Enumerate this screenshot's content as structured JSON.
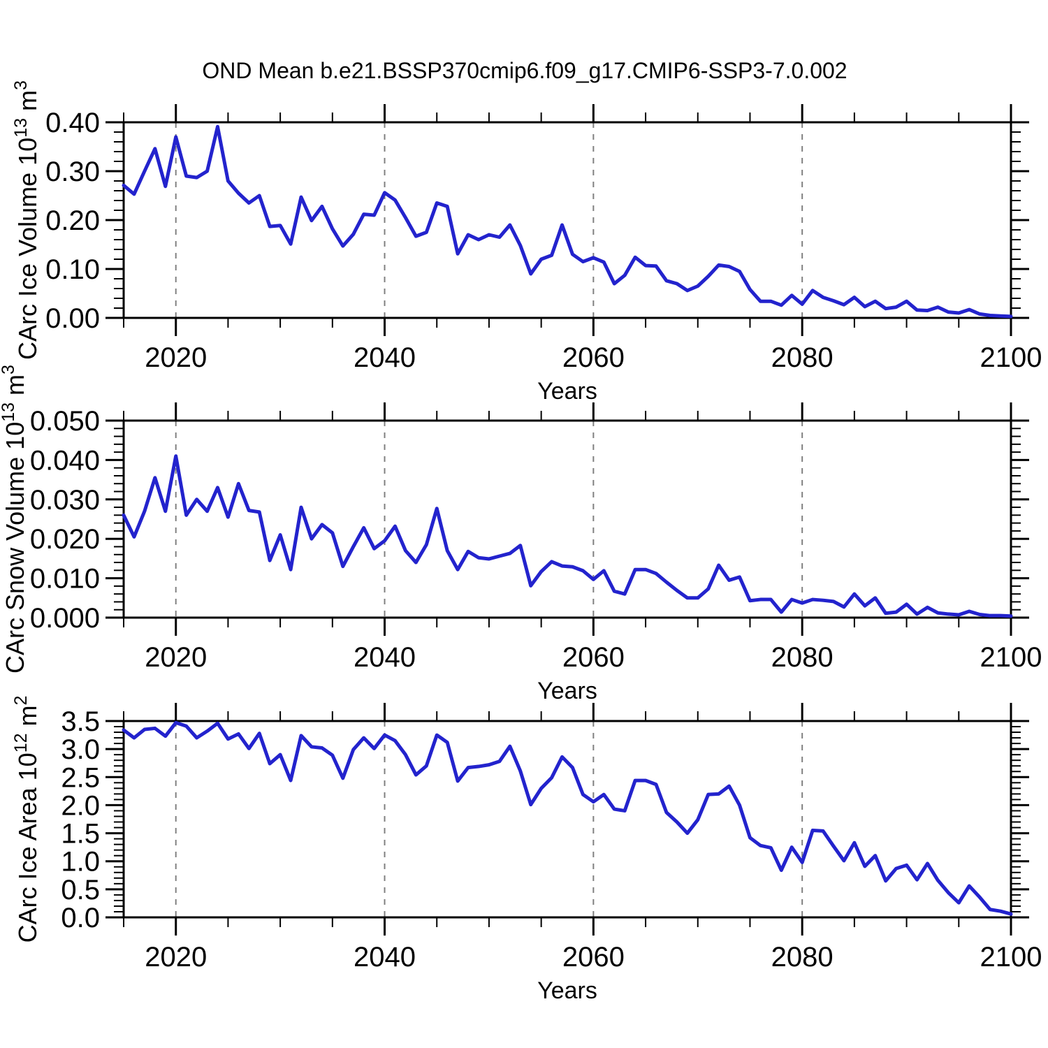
{
  "title": "OND Mean b.e21.BSSP370cmip6.f09_g17.CMIP6-SSP3-7.0.002",
  "colors": {
    "line": "#2323cd",
    "axis": "#000000",
    "grid": "#808080",
    "background": "#ffffff"
  },
  "chart_data": [
    {
      "type": "line",
      "xlabel": "Years",
      "ylabel": {
        "text": "CArc Ice Volume 10",
        "sup1": "13",
        "text2": " m",
        "sup2": "3"
      },
      "x_start": 2015,
      "x_end": 2100,
      "x_step": 1,
      "x_minor_step": 5,
      "grid_years": [
        2020,
        2040,
        2060,
        2080
      ],
      "x_major_ticks": [
        {
          "value": 2020,
          "label": "2020"
        },
        {
          "value": 2040,
          "label": "2040"
        },
        {
          "value": 2060,
          "label": "2060"
        },
        {
          "value": 2080,
          "label": "2080"
        },
        {
          "value": 2100,
          "label": "2100"
        }
      ],
      "ylim": [
        0,
        0.4
      ],
      "y_minor_step": 0.02,
      "y_major_ticks": [
        {
          "value": 0.0,
          "label": "0.00"
        },
        {
          "value": 0.1,
          "label": "0.10"
        },
        {
          "value": 0.2,
          "label": "0.20"
        },
        {
          "value": 0.3,
          "label": "0.30"
        },
        {
          "value": 0.4,
          "label": "0.40"
        }
      ],
      "series": [
        {
          "name": "CArc Ice Volume OND mean",
          "values": [
            0.271,
            0.253,
            0.3,
            0.346,
            0.269,
            0.37,
            0.29,
            0.287,
            0.3,
            0.391,
            0.28,
            0.255,
            0.235,
            0.25,
            0.187,
            0.189,
            0.151,
            0.247,
            0.199,
            0.228,
            0.182,
            0.147,
            0.171,
            0.212,
            0.21,
            0.256,
            0.241,
            0.205,
            0.167,
            0.175,
            0.235,
            0.228,
            0.131,
            0.17,
            0.16,
            0.17,
            0.165,
            0.19,
            0.148,
            0.09,
            0.12,
            0.128,
            0.19,
            0.13,
            0.115,
            0.123,
            0.114,
            0.07,
            0.087,
            0.124,
            0.107,
            0.106,
            0.076,
            0.07,
            0.056,
            0.065,
            0.085,
            0.108,
            0.105,
            0.095,
            0.058,
            0.034,
            0.034,
            0.026,
            0.046,
            0.028,
            0.056,
            0.042,
            0.035,
            0.027,
            0.042,
            0.023,
            0.034,
            0.019,
            0.022,
            0.034,
            0.016,
            0.015,
            0.022,
            0.012,
            0.01,
            0.017,
            0.008,
            0.005,
            0.004,
            0.003
          ]
        }
      ]
    },
    {
      "type": "line",
      "xlabel": "Years",
      "ylabel": {
        "text": "CArc Snow Volume 10",
        "sup1": "13",
        "text2": " m",
        "sup2": "3"
      },
      "x_start": 2015,
      "x_end": 2100,
      "x_step": 1,
      "x_minor_step": 5,
      "grid_years": [
        2020,
        2040,
        2060,
        2080
      ],
      "x_major_ticks": [
        {
          "value": 2020,
          "label": "2020"
        },
        {
          "value": 2040,
          "label": "2040"
        },
        {
          "value": 2060,
          "label": "2060"
        },
        {
          "value": 2080,
          "label": "2080"
        },
        {
          "value": 2100,
          "label": "2100"
        }
      ],
      "ylim": [
        0,
        0.05
      ],
      "y_minor_step": 0.002,
      "y_major_ticks": [
        {
          "value": 0.0,
          "label": "0.000"
        },
        {
          "value": 0.01,
          "label": "0.010"
        },
        {
          "value": 0.02,
          "label": "0.020"
        },
        {
          "value": 0.03,
          "label": "0.030"
        },
        {
          "value": 0.04,
          "label": "0.040"
        },
        {
          "value": 0.05,
          "label": "0.050"
        }
      ],
      "series": [
        {
          "name": "CArc Snow Volume OND mean",
          "values": [
            0.026,
            0.0205,
            0.027,
            0.0355,
            0.027,
            0.041,
            0.026,
            0.03,
            0.027,
            0.033,
            0.0255,
            0.034,
            0.0272,
            0.0268,
            0.0145,
            0.021,
            0.0122,
            0.028,
            0.02,
            0.0236,
            0.0215,
            0.013,
            0.018,
            0.0228,
            0.0175,
            0.0195,
            0.0232,
            0.017,
            0.014,
            0.0185,
            0.0277,
            0.017,
            0.0122,
            0.0168,
            0.0152,
            0.0149,
            0.0156,
            0.0163,
            0.0183,
            0.0081,
            0.0117,
            0.0142,
            0.0131,
            0.0129,
            0.0119,
            0.0097,
            0.0119,
            0.0067,
            0.006,
            0.0122,
            0.0122,
            0.0112,
            0.009,
            0.0069,
            0.005,
            0.005,
            0.0073,
            0.0133,
            0.0095,
            0.0103,
            0.0043,
            0.0046,
            0.0046,
            0.0014,
            0.0046,
            0.0037,
            0.0046,
            0.0044,
            0.0041,
            0.0027,
            0.006,
            0.003,
            0.005,
            0.0011,
            0.0014,
            0.0034,
            0.0009,
            0.0026,
            0.0012,
            0.0009,
            0.0007,
            0.0016,
            0.0008,
            0.0005,
            0.0005,
            0.0004
          ]
        }
      ]
    },
    {
      "type": "line",
      "xlabel": "Years",
      "ylabel": {
        "text": "CArc Ice Area 10",
        "sup1": "12",
        "text2": " m",
        "sup2": "2"
      },
      "x_start": 2015,
      "x_end": 2100,
      "x_step": 1,
      "x_minor_step": 5,
      "grid_years": [
        2020,
        2040,
        2060,
        2080
      ],
      "x_major_ticks": [
        {
          "value": 2020,
          "label": "2020"
        },
        {
          "value": 2040,
          "label": "2040"
        },
        {
          "value": 2060,
          "label": "2060"
        },
        {
          "value": 2080,
          "label": "2080"
        },
        {
          "value": 2100,
          "label": "2100"
        }
      ],
      "ylim": [
        0,
        3.5
      ],
      "y_minor_step": 0.1,
      "y_major_ticks": [
        {
          "value": 0.0,
          "label": "0.0"
        },
        {
          "value": 0.5,
          "label": "0.5"
        },
        {
          "value": 1.0,
          "label": "1.0"
        },
        {
          "value": 1.5,
          "label": "1.5"
        },
        {
          "value": 2.0,
          "label": "2.0"
        },
        {
          "value": 2.5,
          "label": "2.5"
        },
        {
          "value": 3.0,
          "label": "3.0"
        },
        {
          "value": 3.5,
          "label": "3.5"
        }
      ],
      "series": [
        {
          "name": "CArc Ice Area OND mean",
          "values": [
            3.34,
            3.2,
            3.35,
            3.37,
            3.23,
            3.47,
            3.41,
            3.2,
            3.32,
            3.46,
            3.18,
            3.27,
            3.01,
            3.28,
            2.74,
            2.9,
            2.44,
            3.24,
            3.04,
            3.02,
            2.89,
            2.48,
            2.99,
            3.2,
            3.01,
            3.25,
            3.15,
            2.9,
            2.54,
            2.7,
            3.25,
            3.12,
            2.43,
            2.67,
            2.69,
            2.72,
            2.78,
            3.05,
            2.61,
            2.01,
            2.3,
            2.49,
            2.86,
            2.67,
            2.19,
            2.06,
            2.19,
            1.93,
            1.9,
            2.44,
            2.44,
            2.37,
            1.87,
            1.7,
            1.5,
            1.74,
            2.19,
            2.2,
            2.34,
            2.0,
            1.42,
            1.28,
            1.24,
            0.84,
            1.25,
            0.98,
            1.55,
            1.54,
            1.27,
            1.01,
            1.33,
            0.91,
            1.1,
            0.65,
            0.87,
            0.93,
            0.67,
            0.96,
            0.66,
            0.44,
            0.26,
            0.56,
            0.36,
            0.14,
            0.11,
            0.06
          ]
        }
      ]
    }
  ]
}
